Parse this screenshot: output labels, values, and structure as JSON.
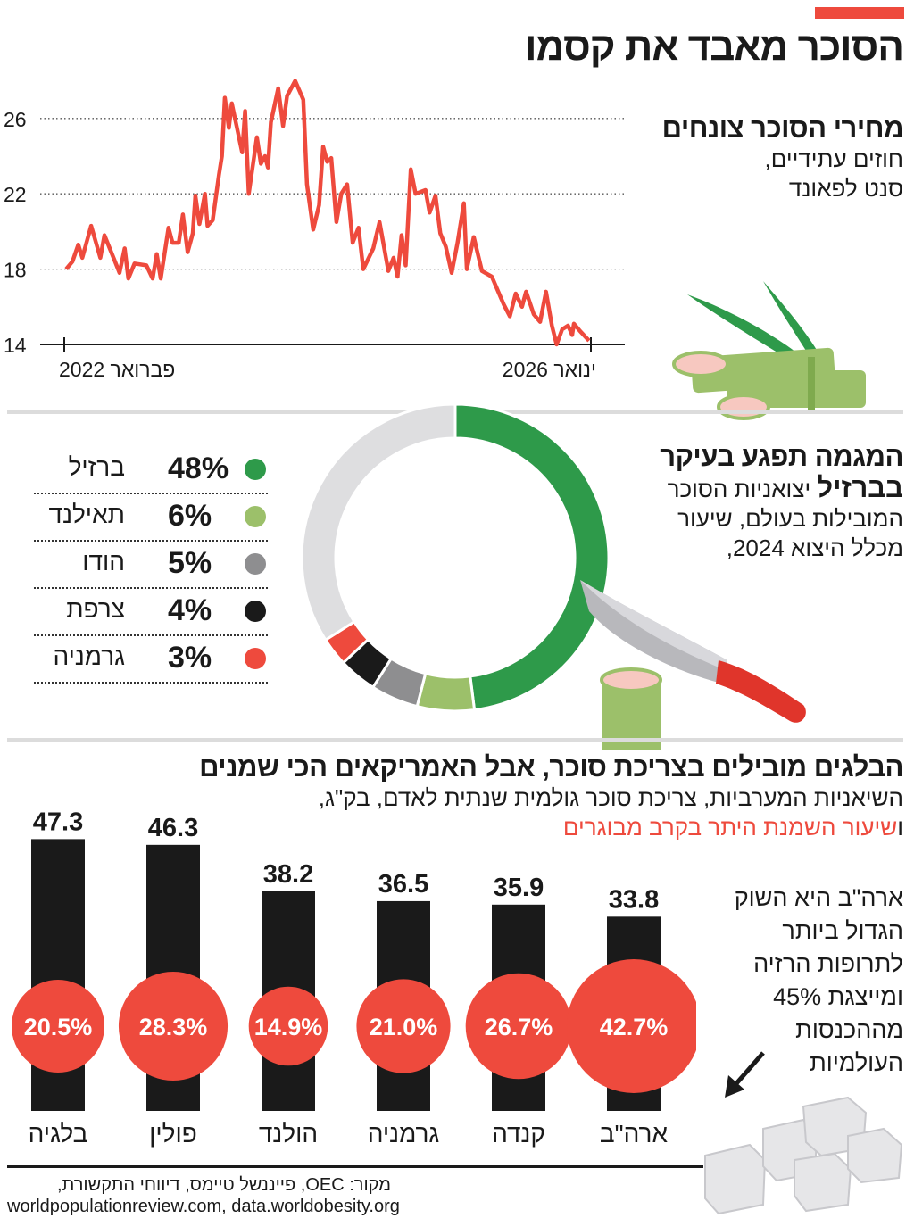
{
  "header": {
    "title": "הסוכר מאבד את קסמו",
    "accent_color": "#ee4a3d"
  },
  "price_section": {
    "title": "מחירי הסוכר צונחים",
    "subtitle_line1": "חוזים עתידיים,",
    "subtitle_line2": "סנט לפאונד"
  },
  "export_section": {
    "title_line1": "המגמה תפגע בעיקר",
    "title_line2_bold": "בברזיל",
    "title_line2_rest": " יצואניות הסוכר",
    "subtitle_line1": "המובילות בעולם, שיעור",
    "subtitle_line2": "מכלל היצוא 2024,"
  },
  "consumption_section": {
    "title": "הבלגים מובילים בצריכת סוכר, אבל האמריקאים הכי שמנים",
    "subtitle_line1": "השיאניות המערביות, צריכת סוכר גולמית שנתית לאדם, בק\"ג,",
    "subtitle_line2_prefix": "ו",
    "subtitle_line2_highlight": "שיעור השמנת היתר בקרב מבוגרים",
    "us_note": "ארה\"ב היא השוק הגדול ביותר לתרופות הרזיה ומייצגת 45% מההכנסות העולמיות"
  },
  "source": {
    "line1": "מקור: OEC, פייננשל טיימס, דיווחי התקשורת,",
    "line2": "worldpopulationreview.com, data.worldobesity.org"
  },
  "chart_data": [
    {
      "type": "line",
      "title": "מחירי הסוכר צונחים",
      "ylabel": "חוזים עתידיים, סנט לפאונד",
      "ylim": [
        14,
        28
      ],
      "yticks": [
        "14",
        "18",
        "22",
        "26"
      ],
      "xtick_labels": {
        "start": "פברואר 2022",
        "end": "ינואר 2026"
      },
      "xlim": [
        "2022-02-01",
        "2026-01-01"
      ],
      "grid": "horizontal dotted",
      "color": "#ee4a3d",
      "points": [
        [
          "2022-02-06",
          18.0
        ],
        [
          "2022-02-23",
          18.4
        ],
        [
          "2022-03-11",
          19.3
        ],
        [
          "2022-03-22",
          18.6
        ],
        [
          "2022-04-15",
          20.3
        ],
        [
          "2022-05-10",
          18.6
        ],
        [
          "2022-05-21",
          19.8
        ],
        [
          "2022-06-17",
          18.5
        ],
        [
          "2022-07-01",
          17.8
        ],
        [
          "2022-07-15",
          19.1
        ],
        [
          "2022-07-25",
          17.5
        ],
        [
          "2022-08-11",
          18.3
        ],
        [
          "2022-09-12",
          18.2
        ],
        [
          "2022-09-29",
          17.5
        ],
        [
          "2022-10-10",
          18.8
        ],
        [
          "2022-10-21",
          17.5
        ],
        [
          "2022-11-11",
          20.2
        ],
        [
          "2022-11-22",
          19.4
        ],
        [
          "2022-12-09",
          19.4
        ],
        [
          "2022-12-20",
          20.9
        ],
        [
          "2023-01-02",
          18.9
        ],
        [
          "2023-01-16",
          19.9
        ],
        [
          "2023-01-23",
          21.9
        ],
        [
          "2023-02-03",
          20.4
        ],
        [
          "2023-02-18",
          22.0
        ],
        [
          "2023-02-25",
          20.3
        ],
        [
          "2023-03-11",
          20.6
        ],
        [
          "2023-03-28",
          23.0
        ],
        [
          "2023-04-05",
          24.0
        ],
        [
          "2023-04-13",
          27.1
        ],
        [
          "2023-04-24",
          25.5
        ],
        [
          "2023-05-02",
          26.8
        ],
        [
          "2023-05-30",
          24.2
        ],
        [
          "2023-06-07",
          26.4
        ],
        [
          "2023-06-17",
          22.0
        ],
        [
          "2023-07-09",
          25.0
        ],
        [
          "2023-07-20",
          23.6
        ],
        [
          "2023-07-31",
          24.0
        ],
        [
          "2023-08-08",
          23.4
        ],
        [
          "2023-08-16",
          25.8
        ],
        [
          "2023-09-05",
          27.6
        ],
        [
          "2023-09-18",
          25.6
        ],
        [
          "2023-09-29",
          27.2
        ],
        [
          "2023-10-21",
          28.0
        ],
        [
          "2023-11-12",
          27.0
        ],
        [
          "2023-11-22",
          22.5
        ],
        [
          "2023-12-09",
          20.1
        ],
        [
          "2023-12-25",
          21.4
        ],
        [
          "2024-01-05",
          24.5
        ],
        [
          "2024-01-16",
          23.7
        ],
        [
          "2024-01-27",
          23.9
        ],
        [
          "2024-02-10",
          20.5
        ],
        [
          "2024-02-23",
          22.0
        ],
        [
          "2024-03-10",
          22.5
        ],
        [
          "2024-03-25",
          19.4
        ],
        [
          "2024-04-10",
          20.2
        ],
        [
          "2024-04-23",
          18.0
        ],
        [
          "2024-05-20",
          19.1
        ],
        [
          "2024-06-06",
          20.5
        ],
        [
          "2024-06-30",
          17.9
        ],
        [
          "2024-07-14",
          18.6
        ],
        [
          "2024-07-25",
          17.6
        ],
        [
          "2024-08-05",
          19.8
        ],
        [
          "2024-08-16",
          18.2
        ],
        [
          "2024-08-30",
          23.3
        ],
        [
          "2024-09-12",
          22.0
        ],
        [
          "2024-10-09",
          22.2
        ],
        [
          "2024-10-20",
          21.0
        ],
        [
          "2024-11-05",
          21.9
        ],
        [
          "2024-11-18",
          19.9
        ],
        [
          "2024-12-03",
          19.2
        ],
        [
          "2024-12-19",
          17.8
        ],
        [
          "2025-01-04",
          19.4
        ],
        [
          "2025-01-21",
          21.5
        ],
        [
          "2025-01-29",
          18.0
        ],
        [
          "2025-02-17",
          19.7
        ],
        [
          "2025-03-11",
          17.9
        ],
        [
          "2025-04-07",
          17.6
        ],
        [
          "2025-05-10",
          16.1
        ],
        [
          "2025-05-26",
          15.5
        ],
        [
          "2025-06-11",
          16.7
        ],
        [
          "2025-06-28",
          16.0
        ],
        [
          "2025-07-09",
          16.8
        ],
        [
          "2025-07-30",
          15.6
        ],
        [
          "2025-08-16",
          15.2
        ],
        [
          "2025-09-01",
          16.8
        ],
        [
          "2025-09-17",
          15.0
        ],
        [
          "2025-09-30",
          14.0
        ],
        [
          "2025-10-15",
          14.8
        ],
        [
          "2025-10-31",
          15.0
        ],
        [
          "2025-11-11",
          14.5
        ],
        [
          "2025-11-16",
          15.1
        ],
        [
          "2025-12-03",
          14.7
        ],
        [
          "2025-12-27",
          14.2
        ]
      ]
    },
    {
      "type": "pie",
      "style": "donut",
      "slices": [
        {
          "label": "ברזיל",
          "value": 48,
          "display": "48%",
          "color": "#2e9a4a"
        },
        {
          "label": "תאילנד",
          "value": 6,
          "display": "6%",
          "color": "#9cc06a"
        },
        {
          "label": "הודו",
          "value": 5,
          "display": "5%",
          "color": "#8e8e90"
        },
        {
          "label": "צרפת",
          "value": 4,
          "display": "4%",
          "color": "#1a1a1a"
        },
        {
          "label": "גרמניה",
          "value": 3,
          "display": "3%",
          "color": "#ee4a3d"
        }
      ],
      "remainder_color": "#dedee0",
      "legend": "left"
    },
    {
      "type": "bar",
      "categories": [
        "בלגיה",
        "פולין",
        "הולנד",
        "גרמניה",
        "קנדה",
        "ארה\"ב"
      ],
      "series": [
        {
          "values": [
            47.3,
            46.3,
            38.2,
            36.5,
            35.9,
            33.8
          ],
          "labels": [
            "47.3",
            "46.3",
            "38.2",
            "36.5",
            "35.9",
            "33.8"
          ],
          "color": "#1a1a1a"
        },
        {
          "values": [
            20.5,
            28.3,
            14.9,
            21.0,
            26.7,
            42.7
          ],
          "labels": [
            "20.5%",
            "28.3%",
            "14.9%",
            "21.0%",
            "26.7%",
            "42.7%"
          ],
          "color": "#ee4a3d",
          "mark": "circle"
        }
      ]
    }
  ]
}
